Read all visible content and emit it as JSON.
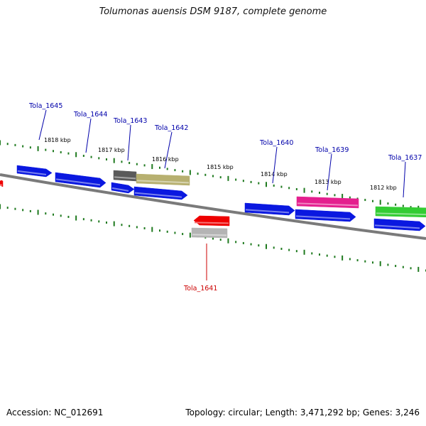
{
  "title": "Tolumonas auensis DSM 9187, complete genome",
  "footer": {
    "accession": "Accession: NC_012691",
    "summary": "Topology: circular; Length: 3,471,292 bp; Genes: 3,246"
  },
  "colors": {
    "backbone": "#7a7a7a",
    "tick": "#1f7a1f",
    "label_blue": "#0000aa",
    "label_red": "#cc0000",
    "blue": "#0a18e0",
    "gray": "#5a5a5a",
    "lightgray": "#b4b4b4",
    "olive": "#b7b070",
    "magenta": "#e4208e",
    "green": "#33cc33",
    "red": "#ee0000"
  },
  "kbp_labels": [
    {
      "text": "1818 kbp"
    },
    {
      "text": "1817 kbp"
    },
    {
      "text": "1816 kbp"
    },
    {
      "text": "1815 kbp"
    },
    {
      "text": "1814 kbp"
    },
    {
      "text": "1813 kbp"
    },
    {
      "text": "1812 kbp"
    }
  ],
  "gene_labels": [
    {
      "text": "Tola_1645",
      "color": "label_blue"
    },
    {
      "text": "Tola_1644",
      "color": "label_blue"
    },
    {
      "text": "Tola_1643",
      "color": "label_blue"
    },
    {
      "text": "Tola_1642",
      "color": "label_blue"
    },
    {
      "text": "Tola_1640",
      "color": "label_blue"
    },
    {
      "text": "Tola_1639",
      "color": "label_blue"
    },
    {
      "text": "Tola_1637",
      "color": "label_blue"
    },
    {
      "text": "Tola_1641",
      "color": "label_red"
    }
  ],
  "genes": [
    {
      "color": "red",
      "direction": "reverse"
    },
    {
      "color": "blue",
      "direction": "forward"
    },
    {
      "color": "blue",
      "direction": "forward"
    },
    {
      "color": "gray",
      "direction": "none"
    },
    {
      "color": "olive",
      "direction": "none"
    },
    {
      "color": "blue",
      "direction": "forward"
    },
    {
      "color": "blue",
      "direction": "forward"
    },
    {
      "color": "blue",
      "direction": "forward"
    },
    {
      "color": "magenta",
      "direction": "none"
    },
    {
      "color": "blue",
      "direction": "forward"
    },
    {
      "color": "green",
      "direction": "none"
    },
    {
      "color": "blue",
      "direction": "forward"
    },
    {
      "color": "red",
      "direction": "reverse"
    },
    {
      "color": "lightgray",
      "direction": "none"
    }
  ]
}
